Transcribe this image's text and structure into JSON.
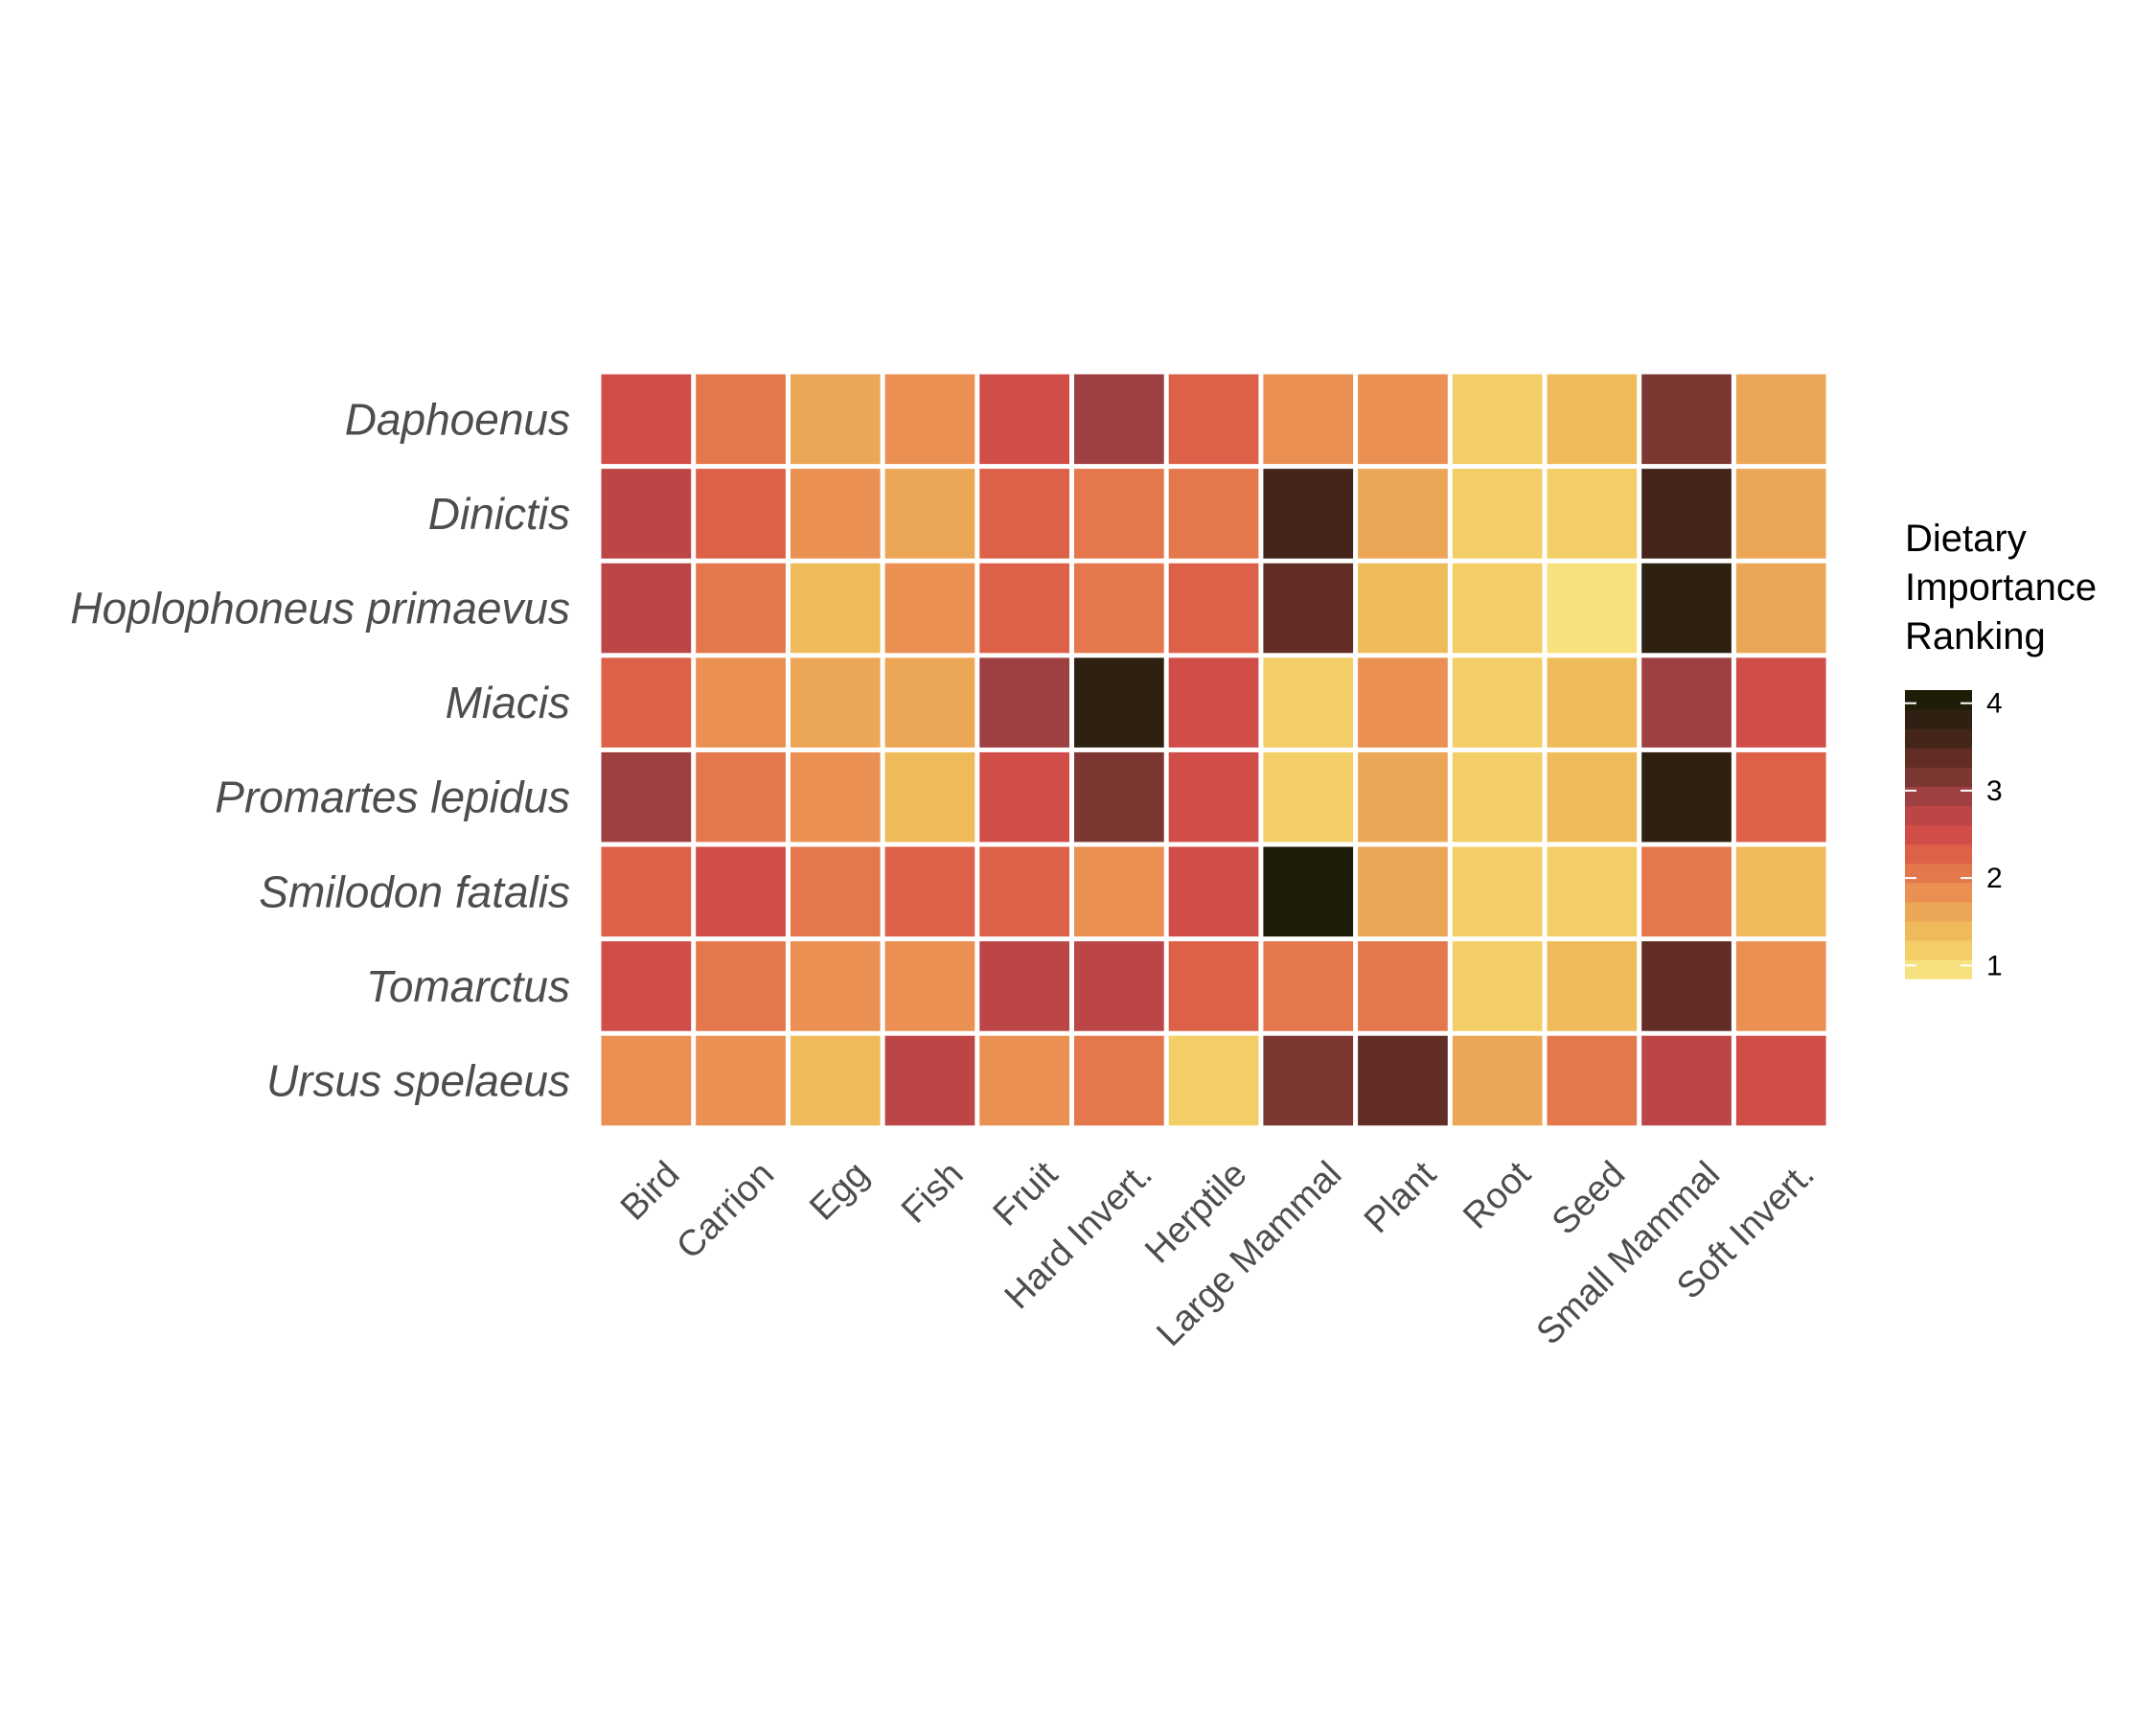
{
  "chart_data": {
    "type": "heatmap",
    "title": "",
    "xlabel": "",
    "ylabel": "",
    "rows": [
      "Daphoenus",
      "Dinictis",
      "Hoplophoneus primaevus",
      "Miacis",
      "Promartes lepidus",
      "Smilodon fatalis",
      "Tomarctus",
      "Ursus spelaeus"
    ],
    "columns": [
      "Bird",
      "Carrion",
      "Egg",
      "Fish",
      "Fruit",
      "Hard Invert.",
      "Herptile",
      "Large Mammal",
      "Plant",
      "Root",
      "Seed",
      "Small Mammal",
      "Soft Invert."
    ],
    "values": [
      [
        2.5,
        2.05,
        1.6,
        1.85,
        2.6,
        3.0,
        2.35,
        1.75,
        1.8,
        1.15,
        1.3,
        3.25,
        1.7
      ],
      [
        2.8,
        2.2,
        1.75,
        1.7,
        2.25,
        1.95,
        2.15,
        3.65,
        1.55,
        1.1,
        1.15,
        3.5,
        1.6
      ],
      [
        2.8,
        2.15,
        1.4,
        1.75,
        2.2,
        2.0,
        2.3,
        3.45,
        1.4,
        1.1,
        1.05,
        3.75,
        1.55
      ],
      [
        2.3,
        1.85,
        1.65,
        1.55,
        2.9,
        3.85,
        2.5,
        1.1,
        1.8,
        1.25,
        1.4,
        3.05,
        2.4
      ],
      [
        3.0,
        1.95,
        1.75,
        1.5,
        2.55,
        3.1,
        2.45,
        1.25,
        1.7,
        1.2,
        1.35,
        3.85,
        2.2
      ],
      [
        2.25,
        2.45,
        2.15,
        2.2,
        2.3,
        1.8,
        2.45,
        4.15,
        1.6,
        1.1,
        1.2,
        2.1,
        1.35
      ],
      [
        2.6,
        2.0,
        1.75,
        1.9,
        2.7,
        2.65,
        2.2,
        2.15,
        2.0,
        1.15,
        1.35,
        3.35,
        1.8
      ],
      [
        1.75,
        1.75,
        1.5,
        2.8,
        1.85,
        2.1,
        1.1,
        3.15,
        3.45,
        1.7,
        2.0,
        2.75,
        2.45
      ]
    ],
    "colorbar": {
      "title": [
        "Dietary",
        "Importance",
        "Ranking"
      ],
      "ticks": [
        1,
        2,
        3,
        4
      ],
      "min": 0.85,
      "max": 4.15,
      "colors": [
        "#f7e17e",
        "#f3ce66",
        "#efbb5a",
        "#eba756",
        "#e99052",
        "#e4784c",
        "#dd6048",
        "#d04d48",
        "#bc4546",
        "#9e4042",
        "#7d3733",
        "#622d24",
        "#432619",
        "#2e2112",
        "#1e1e08"
      ]
    },
    "legend_position": "right",
    "grid": false
  }
}
